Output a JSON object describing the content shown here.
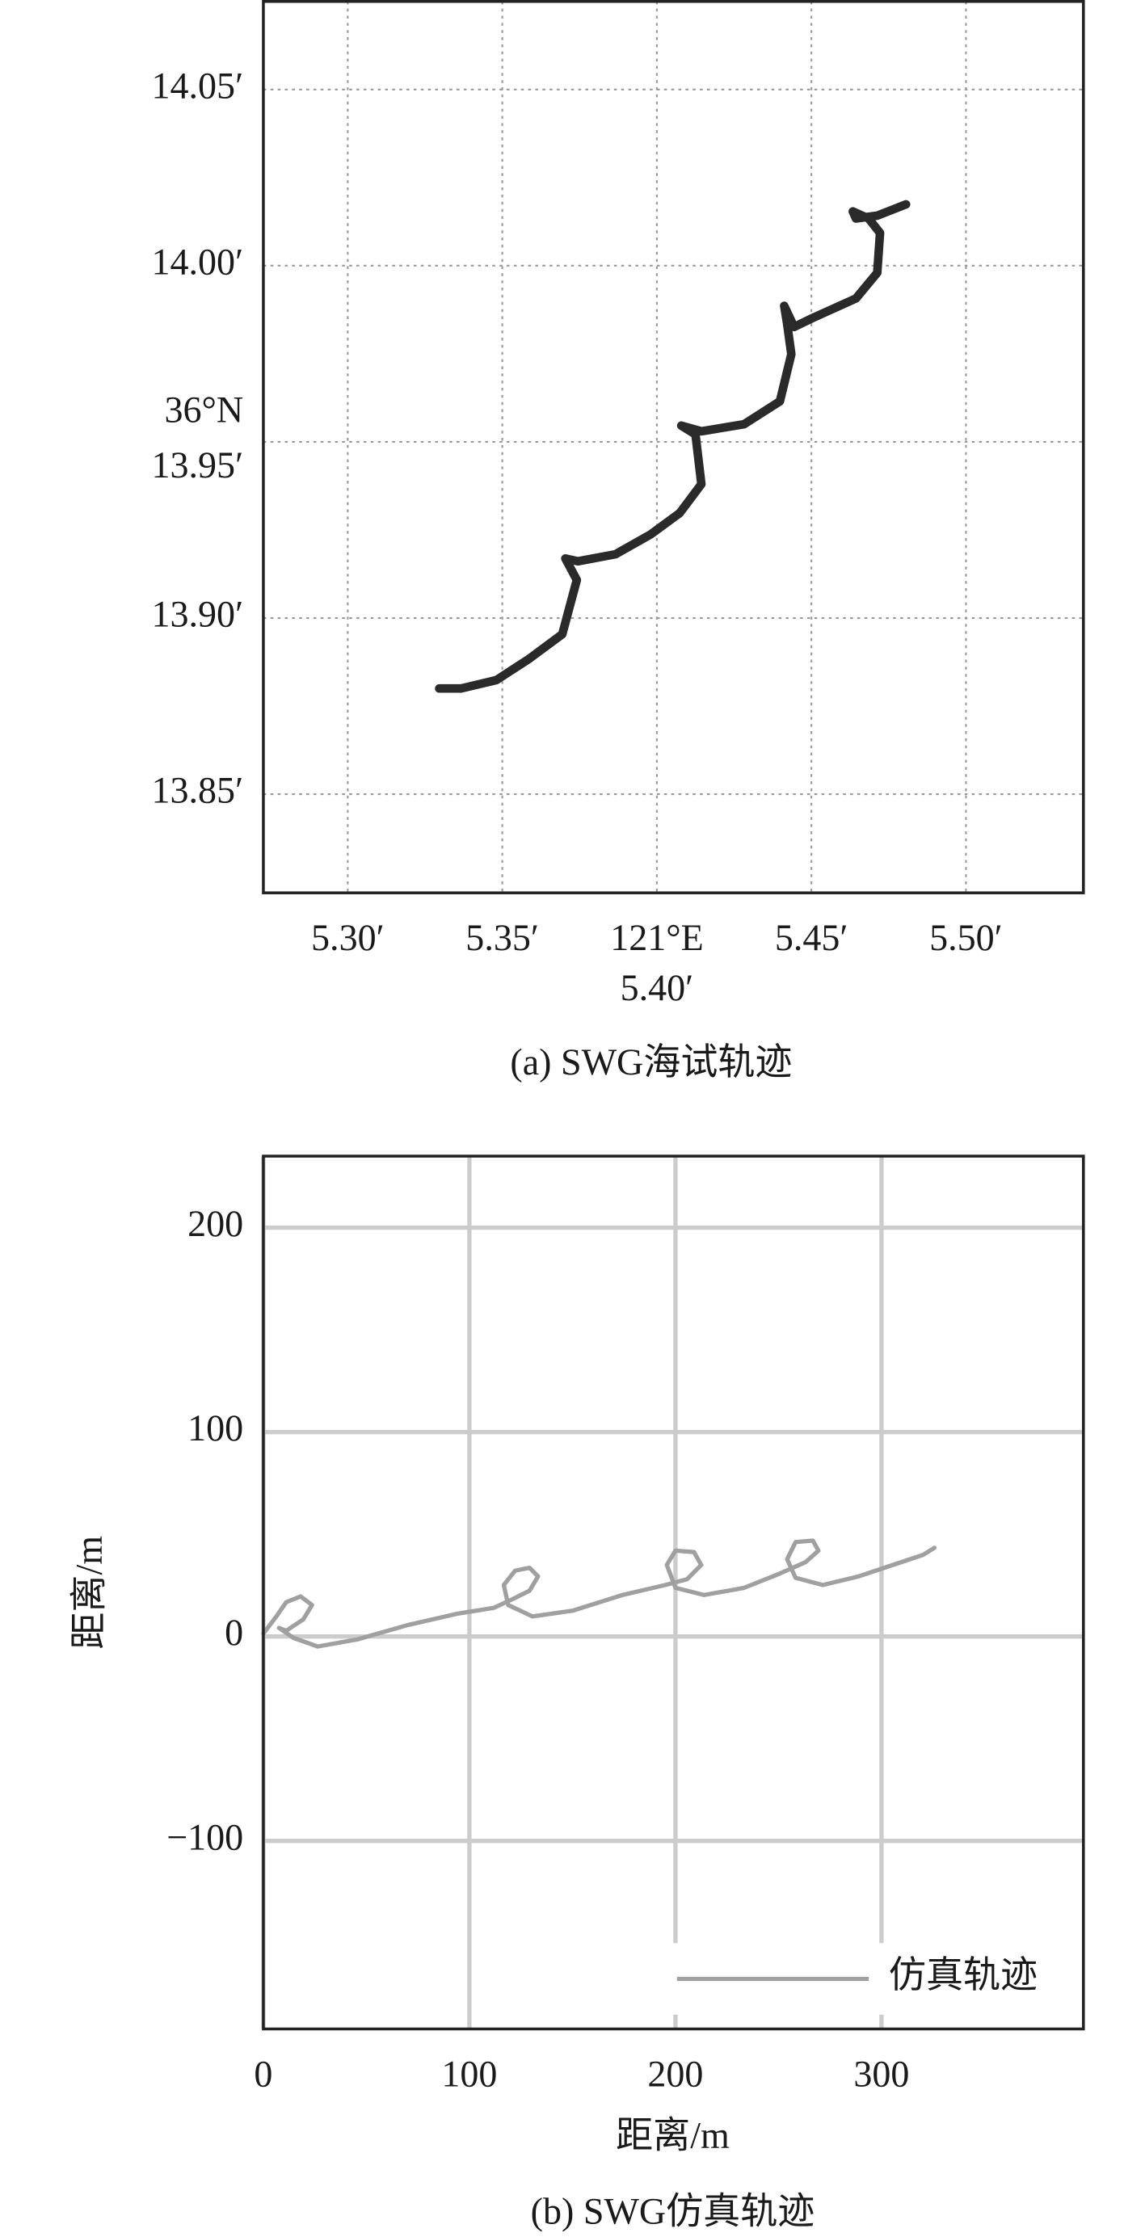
{
  "chart_data": [
    {
      "type": "line",
      "caption": "(a) SWG海试轨迹",
      "xlabel": "121°E",
      "ylabel": "36°N",
      "xlim": [
        5.2727,
        5.538
      ],
      "ylim": [
        13.822,
        14.075
      ],
      "xticks": [
        {
          "value": 5.3,
          "label": "5.30′"
        },
        {
          "value": 5.35,
          "label": "5.35′"
        },
        {
          "value": 5.4,
          "label": "5.40′"
        },
        {
          "value": 5.45,
          "label": "5.45′"
        },
        {
          "value": 5.5,
          "label": "5.50′"
        }
      ],
      "yticks": [
        {
          "value": 13.85,
          "label": "13.85′"
        },
        {
          "value": 13.9,
          "label": "13.90′"
        },
        {
          "value": 13.95,
          "label": "13.95′"
        },
        {
          "value": 14.0,
          "label": "14.00′"
        },
        {
          "value": 14.05,
          "label": "14.05′"
        }
      ],
      "grid": "dotted",
      "series": [
        {
          "color": "#2a2a2a",
          "x": [
            5.3296,
            5.3366,
            5.3481,
            5.3588,
            5.3694,
            5.3741,
            5.3704,
            5.3745,
            5.3866,
            5.3981,
            5.4074,
            5.4144,
            5.4125,
            5.4079,
            5.4144,
            5.4282,
            5.4398,
            5.4435,
            5.4421,
            5.4412,
            5.4444,
            5.45,
            5.4644,
            5.4713,
            5.4722,
            5.4685,
            5.4634,
            5.4644,
            5.4713,
            5.4806
          ],
          "values": [
            13.88,
            13.88,
            13.8824,
            13.8885,
            13.8954,
            13.9108,
            13.9169,
            13.9161,
            13.9181,
            13.9238,
            13.9298,
            13.938,
            13.9521,
            13.9546,
            13.953,
            13.955,
            13.9615,
            13.9749,
            13.9838,
            13.9886,
            13.9826,
            13.985,
            13.9907,
            13.998,
            14.0093,
            14.0134,
            14.0154,
            14.0134,
            14.0142,
            14.0174
          ]
        }
      ]
    },
    {
      "type": "line",
      "caption": "(b) SWG仿真轨迹",
      "xlabel": "距离/m",
      "ylabel": "距离/m",
      "xlim": [
        0,
        398
      ],
      "ylim": [
        -192,
        235
      ],
      "xticks": [
        0,
        100,
        200,
        300
      ],
      "yticks": [
        {
          "value": -100,
          "label": "−100"
        },
        0,
        100,
        200
      ],
      "grid": "solid",
      "legend": "lower right",
      "series": [
        {
          "name": "仿真轨迹",
          "color": "#a0a0a0",
          "x": [
            0,
            6.3,
            11.1,
            18.1,
            23.6,
            19.4,
            11.1,
            7.6,
            14.6,
            26.4,
            45.8,
            70.1,
            94.4,
            111.8,
            120.8,
            129.2,
            133.3,
            129.2,
            122.2,
            116.7,
            118.8,
            130.6,
            150.0,
            174.3,
            195.1,
            205.6,
            212.5,
            209.0,
            200.0,
            195.8,
            200.0,
            213.9,
            233.3,
            250.7,
            263.2,
            269.4,
            266.7,
            258.3,
            254.2,
            258.3,
            271.5,
            288.9,
            309.7,
            320.1,
            325.7
          ],
          "values": [
            1.4,
            9.8,
            16.8,
            19.6,
            15.4,
            8.4,
            2.8,
            4.2,
            -0.7,
            -4.9,
            -1.4,
            5.6,
            11.2,
            14.0,
            18.2,
            22.4,
            29.4,
            33.6,
            32.2,
            25.2,
            15.4,
            9.8,
            12.6,
            20.3,
            25.2,
            28.0,
            35.0,
            41.3,
            42.0,
            35.0,
            23.8,
            20.3,
            23.8,
            30.8,
            36.4,
            42.0,
            46.9,
            46.2,
            37.8,
            28.7,
            25.2,
            29.4,
            36.4,
            39.9,
            43.4
          ]
        }
      ]
    }
  ]
}
